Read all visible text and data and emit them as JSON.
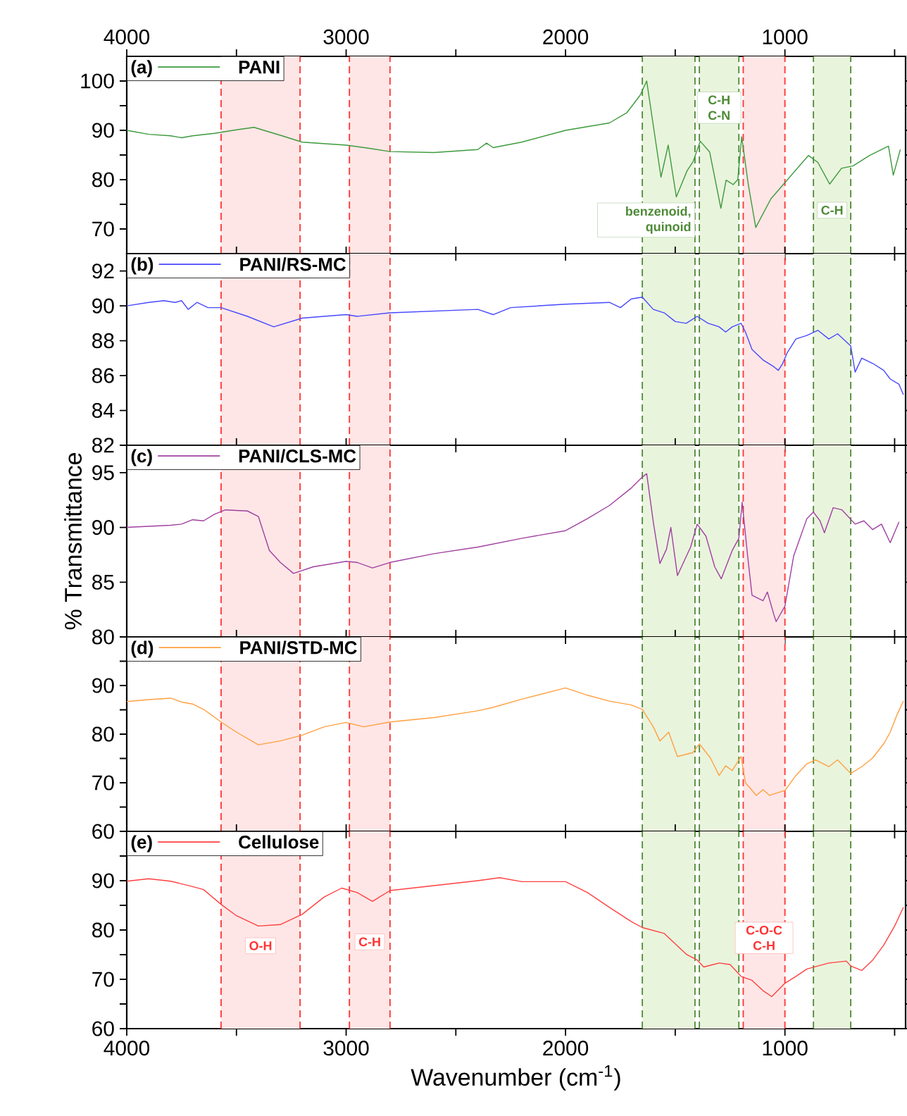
{
  "chart_data": [
    {
      "type": "line",
      "annotations": [
        "(a)"
      ],
      "legend": "top left",
      "tick_labels": "y",
      "xlim": [
        4000,
        450
      ],
      "x2lim": [
        4000,
        450
      ],
      "xticks": [
        4000,
        {
          "value": 3500,
          "label": null
        },
        3000,
        {
          "value": 2500,
          "label": null
        },
        2000,
        {
          "value": 1500,
          "label": null
        },
        1000,
        {
          "value": 500,
          "label": null
        }
      ],
      "x2ticks": [
        4000,
        {
          "value": 3500,
          "label": null
        },
        3000,
        {
          "value": 2500,
          "label": null
        },
        2000,
        {
          "value": 1500,
          "label": null
        },
        1000,
        {
          "value": 500,
          "label": null
        }
      ],
      "ylim": [
        65,
        105
      ],
      "yticks": [
        70,
        {
          "value": 75,
          "label": null
        },
        80,
        {
          "value": 85,
          "label": null
        },
        90,
        {
          "value": 95,
          "label": null
        },
        100
      ],
      "x": [
        4000,
        3900,
        3800,
        3750,
        3700,
        3600,
        3500,
        3420,
        3300,
        3200,
        3000,
        2900,
        2800,
        2600,
        2400,
        2360,
        2330,
        2200,
        2000,
        1800,
        1720,
        1660,
        1630,
        1565,
        1532,
        1495,
        1446,
        1418,
        1386,
        1343,
        1292,
        1268,
        1236,
        1215,
        1197,
        1167,
        1133,
        1064,
        1000,
        893,
        850,
        796,
        742,
        689,
        614,
        528,
        506,
        474
      ],
      "series": [
        {
          "name": "PANI",
          "color": "#3c9a3c",
          "values": [
            90,
            89.2,
            88.9,
            88.5,
            88.9,
            89.4,
            90.1,
            90.6,
            89,
            87.6,
            87,
            86.4,
            85.7,
            85.5,
            86.1,
            87.4,
            86.5,
            87.6,
            90,
            91.5,
            93.6,
            97.1,
            100,
            80.5,
            87,
            76.5,
            81.8,
            83.7,
            87.8,
            85.6,
            74.2,
            79.9,
            79,
            80,
            88.7,
            79,
            70.3,
            76.1,
            79.4,
            84.9,
            83.5,
            79.1,
            82.3,
            82.8,
            84.9,
            86.8,
            80.9,
            86.1
          ]
        }
      ],
      "bands": [
        {
          "axis": "x",
          "from": 3570,
          "to": 3210,
          "color": "#ffe6e6"
        },
        {
          "axis": "x",
          "from": 2985,
          "to": 2800,
          "color": "#ffe6e6"
        },
        {
          "axis": "x",
          "from": 1650,
          "to": 1410,
          "color": "#e9f4dd",
          "label": "benzenoid, quinoid"
        },
        {
          "axis": "x",
          "from": 1390,
          "to": 1210,
          "color": "#e9f4dd",
          "label": "C-H C-N"
        },
        {
          "axis": "x",
          "from": 1190,
          "to": 1000,
          "color": "#ffe6e6"
        },
        {
          "axis": "x",
          "from": 870,
          "to": 700,
          "color": "#e9f4dd",
          "label": "C-H"
        }
      ],
      "ref_lines": [
        {
          "axis": "x",
          "value": 3570,
          "color": "#ff3333",
          "line_style": "dashed"
        },
        {
          "axis": "x",
          "value": 3210,
          "color": "#ff3333",
          "line_style": "dashed"
        },
        {
          "axis": "x",
          "value": 2985,
          "color": "#ff3333",
          "line_style": "dashed"
        },
        {
          "axis": "x",
          "value": 2800,
          "color": "#ff3333",
          "line_style": "dashed"
        },
        {
          "axis": "x",
          "value": 1650,
          "color": "#4e8a36",
          "line_style": "dashed"
        },
        {
          "axis": "x",
          "value": 1410,
          "color": "#4e8a36",
          "line_style": "dashed"
        },
        {
          "axis": "x",
          "value": 1390,
          "color": "#4e8a36",
          "line_style": "dashed"
        },
        {
          "axis": "x",
          "value": 1210,
          "color": "#4e8a36",
          "line_style": "dashed"
        },
        {
          "axis": "x",
          "value": 1190,
          "color": "#ff3333",
          "line_style": "dashed"
        },
        {
          "axis": "x",
          "value": 1000,
          "color": "#ff3333",
          "line_style": "dashed"
        },
        {
          "axis": "x",
          "value": 870,
          "color": "#4e8a36",
          "line_style": "dashed"
        },
        {
          "axis": "x",
          "value": 700,
          "color": "#4e8a36",
          "line_style": "dashed"
        }
      ]
    },
    {
      "type": "line",
      "annotations": [
        "(b)"
      ],
      "legend": "top left",
      "tick_labels": "y",
      "xlim": [
        4000,
        450
      ],
      "xticks": [
        4000,
        {
          "value": 3500,
          "label": null
        },
        3000,
        {
          "value": 2500,
          "label": null
        },
        2000,
        {
          "value": 1500,
          "label": null
        },
        1000,
        {
          "value": 500,
          "label": null
        }
      ],
      "ylim": [
        82,
        93
      ],
      "yticks": [
        82,
        84,
        86,
        88,
        90,
        92
      ],
      "x": [
        4000,
        3900,
        3830,
        3780,
        3750,
        3720,
        3680,
        3630,
        3570,
        3450,
        3330,
        3200,
        3000,
        2950,
        2800,
        2600,
        2400,
        2330,
        2250,
        2000,
        1800,
        1750,
        1700,
        1650,
        1600,
        1550,
        1500,
        1450,
        1400,
        1350,
        1300,
        1270,
        1240,
        1200,
        1180,
        1150,
        1100,
        1050,
        1030,
        1010,
        990,
        950,
        900,
        850,
        800,
        760,
        700,
        680,
        650,
        600,
        550,
        520,
        480,
        460
      ],
      "series": [
        {
          "name": "PANI/RS-MC",
          "color": "#4848ff",
          "values": [
            90,
            90.2,
            90.3,
            90.2,
            90.3,
            89.8,
            90.2,
            89.9,
            89.9,
            89.4,
            88.8,
            89.3,
            89.5,
            89.4,
            89.6,
            89.7,
            89.8,
            89.5,
            89.9,
            90.1,
            90.2,
            89.9,
            90.4,
            90.5,
            89.8,
            89.6,
            89.1,
            89,
            89.4,
            89,
            88.8,
            88.5,
            88.8,
            89,
            88.5,
            87.5,
            86.9,
            86.5,
            86.3,
            86.7,
            87.3,
            88.1,
            88.3,
            88.6,
            88.1,
            88.4,
            87.7,
            86.2,
            87,
            86.7,
            86.3,
            85.8,
            85.5,
            84.9
          ]
        }
      ],
      "bands": [
        {
          "axis": "x",
          "from": 3570,
          "to": 3210,
          "color": "#ffe6e6"
        },
        {
          "axis": "x",
          "from": 2985,
          "to": 2800,
          "color": "#ffe6e6"
        },
        {
          "axis": "x",
          "from": 1650,
          "to": 1410,
          "color": "#e9f4dd"
        },
        {
          "axis": "x",
          "from": 1390,
          "to": 1210,
          "color": "#e9f4dd"
        },
        {
          "axis": "x",
          "from": 1190,
          "to": 1000,
          "color": "#ffe6e6"
        },
        {
          "axis": "x",
          "from": 870,
          "to": 700,
          "color": "#e9f4dd"
        }
      ],
      "ref_lines": [
        {
          "axis": "x",
          "value": 3570,
          "color": "#ff3333",
          "line_style": "dashed"
        },
        {
          "axis": "x",
          "value": 3210,
          "color": "#ff3333",
          "line_style": "dashed"
        },
        {
          "axis": "x",
          "value": 2985,
          "color": "#ff3333",
          "line_style": "dashed"
        },
        {
          "axis": "x",
          "value": 2800,
          "color": "#ff3333",
          "line_style": "dashed"
        },
        {
          "axis": "x",
          "value": 1650,
          "color": "#4e8a36",
          "line_style": "dashed"
        },
        {
          "axis": "x",
          "value": 1410,
          "color": "#4e8a36",
          "line_style": "dashed"
        },
        {
          "axis": "x",
          "value": 1390,
          "color": "#4e8a36",
          "line_style": "dashed"
        },
        {
          "axis": "x",
          "value": 1210,
          "color": "#4e8a36",
          "line_style": "dashed"
        },
        {
          "axis": "x",
          "value": 1190,
          "color": "#ff3333",
          "line_style": "dashed"
        },
        {
          "axis": "x",
          "value": 1000,
          "color": "#ff3333",
          "line_style": "dashed"
        },
        {
          "axis": "x",
          "value": 870,
          "color": "#4e8a36",
          "line_style": "dashed"
        },
        {
          "axis": "x",
          "value": 700,
          "color": "#4e8a36",
          "line_style": "dashed"
        }
      ]
    },
    {
      "type": "line",
      "annotations": [
        "(c)"
      ],
      "legend": "top left",
      "tick_labels": "y",
      "ylabel": "% Transmittance",
      "xlim": [
        4000,
        450
      ],
      "xticks": [
        4000,
        {
          "value": 3500,
          "label": null
        },
        3000,
        {
          "value": 2500,
          "label": null
        },
        2000,
        {
          "value": 1500,
          "label": null
        },
        1000,
        {
          "value": 500,
          "label": null
        }
      ],
      "ylim": [
        80,
        97.5
      ],
      "yticks": [
        80,
        85,
        90,
        95
      ],
      "x": [
        4000,
        3900,
        3800,
        3750,
        3700,
        3650,
        3600,
        3550,
        3450,
        3400,
        3350,
        3300,
        3240,
        3150,
        3000,
        2950,
        2880,
        2800,
        2600,
        2400,
        2200,
        2000,
        1900,
        1800,
        1700,
        1650,
        1630,
        1600,
        1570,
        1540,
        1520,
        1490,
        1430,
        1400,
        1360,
        1320,
        1290,
        1240,
        1210,
        1195,
        1170,
        1150,
        1100,
        1080,
        1050,
        1040,
        1000,
        960,
        900,
        870,
        840,
        820,
        780,
        740,
        680,
        640,
        600,
        560,
        520,
        480
      ],
      "series": [
        {
          "name": "PANI/CLS-MC",
          "color": "#a040a0",
          "values": [
            90,
            90.1,
            90.2,
            90.3,
            90.7,
            90.6,
            91.2,
            91.6,
            91.5,
            91,
            87.9,
            86.8,
            85.8,
            86.4,
            86.9,
            86.8,
            86.3,
            86.8,
            87.6,
            88.2,
            89,
            89.7,
            90.8,
            92,
            93.6,
            94.6,
            94.9,
            90.5,
            86.7,
            88,
            90,
            85.6,
            88.2,
            90.3,
            89.2,
            86.4,
            85.3,
            87.9,
            89,
            92.3,
            87.4,
            83.8,
            83.3,
            84.1,
            82,
            81.4,
            82.8,
            87.4,
            90.8,
            91.4,
            90.6,
            89.5,
            91.8,
            91.6,
            90.3,
            90.6,
            89.8,
            90.3,
            88.6,
            90.5
          ]
        }
      ],
      "bands": [
        {
          "axis": "x",
          "from": 3570,
          "to": 3210,
          "color": "#ffe6e6"
        },
        {
          "axis": "x",
          "from": 2985,
          "to": 2800,
          "color": "#ffe6e6"
        },
        {
          "axis": "x",
          "from": 1650,
          "to": 1410,
          "color": "#e9f4dd"
        },
        {
          "axis": "x",
          "from": 1390,
          "to": 1210,
          "color": "#e9f4dd"
        },
        {
          "axis": "x",
          "from": 1190,
          "to": 1000,
          "color": "#ffe6e6"
        },
        {
          "axis": "x",
          "from": 870,
          "to": 700,
          "color": "#e9f4dd"
        }
      ],
      "ref_lines": [
        {
          "axis": "x",
          "value": 3570,
          "color": "#ff3333",
          "line_style": "dashed"
        },
        {
          "axis": "x",
          "value": 3210,
          "color": "#ff3333",
          "line_style": "dashed"
        },
        {
          "axis": "x",
          "value": 2985,
          "color": "#ff3333",
          "line_style": "dashed"
        },
        {
          "axis": "x",
          "value": 2800,
          "color": "#ff3333",
          "line_style": "dashed"
        },
        {
          "axis": "x",
          "value": 1650,
          "color": "#4e8a36",
          "line_style": "dashed"
        },
        {
          "axis": "x",
          "value": 1410,
          "color": "#4e8a36",
          "line_style": "dashed"
        },
        {
          "axis": "x",
          "value": 1390,
          "color": "#4e8a36",
          "line_style": "dashed"
        },
        {
          "axis": "x",
          "value": 1210,
          "color": "#4e8a36",
          "line_style": "dashed"
        },
        {
          "axis": "x",
          "value": 1190,
          "color": "#ff3333",
          "line_style": "dashed"
        },
        {
          "axis": "x",
          "value": 1000,
          "color": "#ff3333",
          "line_style": "dashed"
        },
        {
          "axis": "x",
          "value": 870,
          "color": "#4e8a36",
          "line_style": "dashed"
        },
        {
          "axis": "x",
          "value": 700,
          "color": "#4e8a36",
          "line_style": "dashed"
        }
      ]
    },
    {
      "type": "line",
      "annotations": [
        "(d)"
      ],
      "legend": "top left",
      "tick_labels": "y",
      "xlim": [
        4000,
        450
      ],
      "xticks": [
        4000,
        {
          "value": 3500,
          "label": null
        },
        3000,
        {
          "value": 2500,
          "label": null
        },
        2000,
        {
          "value": 1500,
          "label": null
        },
        1000,
        {
          "value": 500,
          "label": null
        }
      ],
      "ylim": [
        60,
        100
      ],
      "yticks": [
        60,
        {
          "value": 65,
          "label": null
        },
        70,
        {
          "value": 75,
          "label": null
        },
        80,
        {
          "value": 85,
          "label": null
        },
        90,
        {
          "value": 95,
          "label": null
        },
        {
          "value": 100,
          "label": null
        }
      ],
      "x": [
        4000,
        3900,
        3800,
        3750,
        3700,
        3650,
        3570,
        3500,
        3400,
        3300,
        3200,
        3100,
        3000,
        2920,
        2800,
        2600,
        2400,
        2330,
        2200,
        2000,
        1900,
        1800,
        1700,
        1650,
        1600,
        1570,
        1530,
        1490,
        1420,
        1390,
        1340,
        1300,
        1270,
        1240,
        1200,
        1180,
        1130,
        1100,
        1070,
        1030,
        1000,
        950,
        900,
        860,
        800,
        760,
        700,
        650,
        600,
        550,
        520,
        490,
        460
      ],
      "series": [
        {
          "name": "PANI/STD-MC",
          "color": "#ffa040",
          "values": [
            86.7,
            87.1,
            87.4,
            86.6,
            86.2,
            85.1,
            82.5,
            80.4,
            77.8,
            78.6,
            79.8,
            81.5,
            82.4,
            81.5,
            82.5,
            83.4,
            84.8,
            85.5,
            87.2,
            89.5,
            88,
            86.8,
            86,
            85.1,
            81.5,
            78.6,
            80.4,
            75.4,
            76.2,
            78,
            75.1,
            71.5,
            73.5,
            72.5,
            75.4,
            70,
            67.4,
            68.6,
            67.4,
            68,
            68.4,
            71.5,
            73.9,
            74.7,
            73.3,
            74.7,
            71.9,
            73.3,
            75.1,
            78,
            80.4,
            83.9,
            86.8
          ]
        }
      ],
      "bands": [
        {
          "axis": "x",
          "from": 3570,
          "to": 3210,
          "color": "#ffe6e6"
        },
        {
          "axis": "x",
          "from": 2985,
          "to": 2800,
          "color": "#ffe6e6"
        },
        {
          "axis": "x",
          "from": 1650,
          "to": 1410,
          "color": "#e9f4dd"
        },
        {
          "axis": "x",
          "from": 1390,
          "to": 1210,
          "color": "#e9f4dd"
        },
        {
          "axis": "x",
          "from": 1190,
          "to": 1000,
          "color": "#ffe6e6"
        },
        {
          "axis": "x",
          "from": 870,
          "to": 700,
          "color": "#e9f4dd"
        }
      ],
      "ref_lines": [
        {
          "axis": "x",
          "value": 3570,
          "color": "#ff3333",
          "line_style": "dashed"
        },
        {
          "axis": "x",
          "value": 3210,
          "color": "#ff3333",
          "line_style": "dashed"
        },
        {
          "axis": "x",
          "value": 2985,
          "color": "#ff3333",
          "line_style": "dashed"
        },
        {
          "axis": "x",
          "value": 2800,
          "color": "#ff3333",
          "line_style": "dashed"
        },
        {
          "axis": "x",
          "value": 1650,
          "color": "#4e8a36",
          "line_style": "dashed"
        },
        {
          "axis": "x",
          "value": 1410,
          "color": "#4e8a36",
          "line_style": "dashed"
        },
        {
          "axis": "x",
          "value": 1390,
          "color": "#4e8a36",
          "line_style": "dashed"
        },
        {
          "axis": "x",
          "value": 1210,
          "color": "#4e8a36",
          "line_style": "dashed"
        },
        {
          "axis": "x",
          "value": 1190,
          "color": "#ff3333",
          "line_style": "dashed"
        },
        {
          "axis": "x",
          "value": 1000,
          "color": "#ff3333",
          "line_style": "dashed"
        },
        {
          "axis": "x",
          "value": 870,
          "color": "#4e8a36",
          "line_style": "dashed"
        },
        {
          "axis": "x",
          "value": 700,
          "color": "#4e8a36",
          "line_style": "dashed"
        }
      ]
    },
    {
      "type": "line",
      "annotations": [
        "(e)"
      ],
      "legend": "top left",
      "xlabel": "Wavenumber (cm$^{-1}$)",
      "xlim": [
        4000,
        450
      ],
      "xticks": [
        4000,
        {
          "value": 3500,
          "label": null
        },
        3000,
        {
          "value": 2500,
          "label": null
        },
        2000,
        {
          "value": 1500,
          "label": null
        },
        1000,
        {
          "value": 500,
          "label": null
        }
      ],
      "ylim": [
        60,
        100
      ],
      "yticks": [
        60,
        {
          "value": 65,
          "label": null
        },
        70,
        {
          "value": 75,
          "label": null
        },
        80,
        {
          "value": 85,
          "label": null
        },
        90,
        {
          "value": 95,
          "label": null
        },
        {
          "value": 100,
          "label": null
        }
      ],
      "x": [
        4000,
        3900,
        3800,
        3700,
        3650,
        3570,
        3500,
        3400,
        3300,
        3200,
        3100,
        3020,
        2950,
        2880,
        2800,
        2600,
        2400,
        2300,
        2200,
        2000,
        1900,
        1800,
        1700,
        1650,
        1550,
        1450,
        1400,
        1370,
        1300,
        1250,
        1200,
        1150,
        1100,
        1060,
        1000,
        950,
        900,
        800,
        720,
        700,
        650,
        600,
        550,
        500,
        460
      ],
      "series": [
        {
          "name": "Cellulose",
          "color": "#ff4040",
          "values": [
            89.9,
            90.4,
            89.9,
            88.8,
            88.2,
            85.2,
            82.9,
            80.8,
            81.1,
            83.2,
            86.7,
            88.5,
            87.6,
            85.8,
            88,
            89,
            90,
            90.6,
            89.8,
            89.8,
            87.6,
            84.6,
            81.7,
            80.5,
            79.3,
            75.1,
            73.9,
            72.5,
            73.3,
            73,
            70.6,
            69.8,
            67.7,
            66.5,
            69.2,
            70.6,
            72.1,
            73.3,
            73.7,
            72.7,
            71.8,
            73.9,
            76.9,
            80.8,
            84.6
          ]
        }
      ],
      "bands": [
        {
          "axis": "x",
          "from": 3570,
          "to": 3210,
          "color": "#ffe6e6",
          "label": "O-H"
        },
        {
          "axis": "x",
          "from": 2985,
          "to": 2800,
          "color": "#ffe6e6",
          "label": "C-H"
        },
        {
          "axis": "x",
          "from": 1650,
          "to": 1410,
          "color": "#e9f4dd"
        },
        {
          "axis": "x",
          "from": 1390,
          "to": 1210,
          "color": "#e9f4dd"
        },
        {
          "axis": "x",
          "from": 1190,
          "to": 1000,
          "color": "#ffe6e6",
          "label": "C-O-C C-H"
        },
        {
          "axis": "x",
          "from": 870,
          "to": 700,
          "color": "#e9f4dd"
        }
      ],
      "ref_lines": [
        {
          "axis": "x",
          "value": 3570,
          "color": "#ff3333",
          "line_style": "dashed"
        },
        {
          "axis": "x",
          "value": 3210,
          "color": "#ff3333",
          "line_style": "dashed"
        },
        {
          "axis": "x",
          "value": 2985,
          "color": "#ff3333",
          "line_style": "dashed"
        },
        {
          "axis": "x",
          "value": 2800,
          "color": "#ff3333",
          "line_style": "dashed"
        },
        {
          "axis": "x",
          "value": 1650,
          "color": "#4e8a36",
          "line_style": "dashed"
        },
        {
          "axis": "x",
          "value": 1410,
          "color": "#4e8a36",
          "line_style": "dashed"
        },
        {
          "axis": "x",
          "value": 1390,
          "color": "#4e8a36",
          "line_style": "dashed"
        },
        {
          "axis": "x",
          "value": 1210,
          "color": "#4e8a36",
          "line_style": "dashed"
        },
        {
          "axis": "x",
          "value": 1190,
          "color": "#ff3333",
          "line_style": "dashed"
        },
        {
          "axis": "x",
          "value": 1000,
          "color": "#ff3333",
          "line_style": "dashed"
        },
        {
          "axis": "x",
          "value": 870,
          "color": "#4e8a36",
          "line_style": "dashed"
        },
        {
          "axis": "x",
          "value": 700,
          "color": "#4e8a36",
          "line_style": "dashed"
        }
      ]
    }
  ]
}
